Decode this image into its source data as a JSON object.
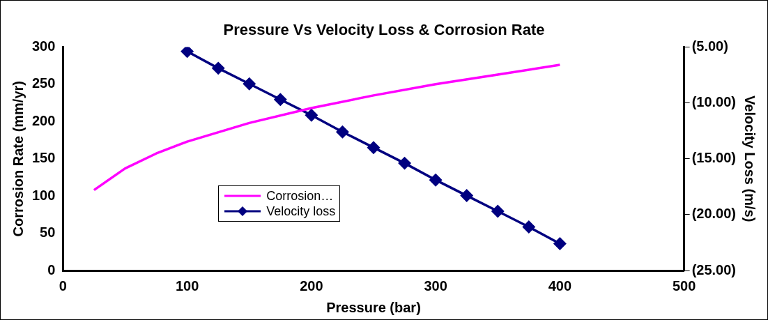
{
  "chart_data": {
    "type": "line",
    "title": "Pressure Vs Velocity Loss & Corrosion Rate",
    "xlabel": "Pressure (bar)",
    "ylabel": "Corrosion Rate (mm/yr)",
    "y2label": "Velocity Loss (m/s)",
    "xlim": [
      0,
      500
    ],
    "xticks": [
      0,
      100,
      200,
      300,
      400,
      500
    ],
    "ylim": [
      0,
      300
    ],
    "yticks": [
      0,
      50,
      100,
      150,
      200,
      250,
      300
    ],
    "y2lim": [
      -25,
      -5
    ],
    "y2ticks": [
      {
        "value": -25,
        "label": "(25.00)"
      },
      {
        "value": -20,
        "label": "(20.00)"
      },
      {
        "value": -15,
        "label": "(15.00)"
      },
      {
        "value": -10,
        "label": "(10.00)"
      },
      {
        "value": -5,
        "label": "(5.00)"
      }
    ],
    "grid": false,
    "legend": "center left",
    "series": [
      {
        "name": "Corrosion…",
        "color": "#ff00ff",
        "marker": "none",
        "x": [
          25,
          50,
          75,
          100,
          150,
          200,
          250,
          300,
          350,
          400
        ],
        "values": [
          108,
          137,
          157,
          173,
          198,
          218,
          235,
          250,
          263,
          276
        ]
      },
      {
        "name": "Velocity loss",
        "color": "#000080",
        "marker": "diamond",
        "axis": "y2",
        "x": [
          100,
          125,
          150,
          175,
          200,
          225,
          250,
          275,
          300,
          325,
          350,
          375,
          400
        ],
        "values": [
          -5.4,
          -6.9,
          -8.3,
          -9.7,
          -11.1,
          -12.6,
          -14.0,
          -15.4,
          -16.9,
          -18.3,
          -19.7,
          -21.1,
          -22.6
        ]
      }
    ]
  }
}
